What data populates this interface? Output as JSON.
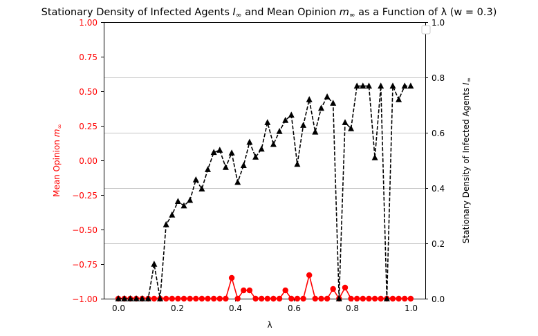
{
  "chart_data": {
    "type": "line",
    "title": "Stationary Density of Infected Agents I∞ and Mean Opinion m∞ as a Function of λ (w = 0.3)",
    "title_parts": {
      "before": "Stationary Density of Infected Agents ",
      "sym1": "I",
      "sub1": "∞",
      "middle": " and Mean Opinion ",
      "sym2": "m",
      "sub2": "∞",
      "after": " as a Function of λ (w = 0.3)"
    },
    "xlabel": "λ",
    "ylabel_left": "Mean Opinion m∞",
    "ylabel_left_parts": {
      "text": "Mean Opinion ",
      "sym": "m",
      "sub": "∞"
    },
    "ylabel_right": "Stationary Density of Infected Agents I∞",
    "ylabel_right_parts": {
      "text": "Stationary Density of Infected Agents ",
      "sym": "I",
      "sub": "∞"
    },
    "xlim": [
      -0.05,
      1.05
    ],
    "ylim_left": [
      -1.0,
      1.0
    ],
    "ylim_right": [
      0.0,
      1.0
    ],
    "x_ticks": [
      "0.0",
      "0.2",
      "0.4",
      "0.6",
      "0.8",
      "1.0"
    ],
    "y_left_ticks": [
      "1.00",
      "0.75",
      "0.50",
      "0.25",
      "0.00",
      "−0.25",
      "−0.50",
      "−0.75",
      "−1.00"
    ],
    "y_right_ticks": [
      "1.0",
      "0.8",
      "0.6",
      "0.4",
      "0.2",
      "0.0"
    ],
    "grid": "horizontal (right axis)",
    "legend": "upper right (empty)",
    "x": [
      0.0,
      0.0204,
      0.0408,
      0.0612,
      0.0816,
      0.102,
      0.1224,
      0.1429,
      0.1633,
      0.1837,
      0.2041,
      0.2245,
      0.2449,
      0.2653,
      0.2857,
      0.3061,
      0.3265,
      0.3469,
      0.3673,
      0.3878,
      0.4082,
      0.4286,
      0.449,
      0.4694,
      0.4898,
      0.5102,
      0.5306,
      0.551,
      0.5714,
      0.5918,
      0.6122,
      0.6327,
      0.6531,
      0.6735,
      0.6939,
      0.7143,
      0.7347,
      0.7551,
      0.7755,
      0.7959,
      0.8163,
      0.8367,
      0.8571,
      0.8776,
      0.898,
      0.9184,
      0.9388,
      0.9592,
      0.9796,
      1.0
    ],
    "series": [
      {
        "axis": "left",
        "color": "#ff0000",
        "style": "solid",
        "marker": "circle",
        "values": [
          -1.0,
          -1.0,
          -1.0,
          -1.0,
          -1.0,
          -1.0,
          -1.0,
          -1.0,
          -1.0,
          -1.0,
          -1.0,
          -1.0,
          -1.0,
          -1.0,
          -1.0,
          -1.0,
          -1.0,
          -1.0,
          -1.0,
          -0.85,
          -1.0,
          -0.94,
          -0.94,
          -1.0,
          -1.0,
          -1.0,
          -1.0,
          -1.0,
          -0.94,
          -1.0,
          -1.0,
          -1.0,
          -0.83,
          -1.0,
          -1.0,
          -1.0,
          -0.93,
          -1.0,
          -0.92,
          -1.0,
          -1.0,
          -1.0,
          -1.0,
          -1.0,
          -1.0,
          -1.0,
          -1.0,
          -1.0,
          -1.0,
          -1.0
        ]
      },
      {
        "axis": "right",
        "color": "#000000",
        "style": "dashed",
        "marker": "triangle",
        "values": [
          0.0,
          0.0,
          0.0,
          0.0,
          0.0,
          0.0,
          0.125,
          0.0,
          0.268,
          0.303,
          0.352,
          0.336,
          0.356,
          0.43,
          0.397,
          0.467,
          0.529,
          0.537,
          0.475,
          0.527,
          0.421,
          0.482,
          0.566,
          0.512,
          0.541,
          0.637,
          0.558,
          0.605,
          0.645,
          0.664,
          0.486,
          0.627,
          0.72,
          0.603,
          0.689,
          0.73,
          0.707,
          0.0,
          0.637,
          0.615,
          0.769,
          0.769,
          0.769,
          0.51,
          0.769,
          0.0,
          0.769,
          0.72,
          0.769,
          0.769
        ]
      }
    ]
  }
}
